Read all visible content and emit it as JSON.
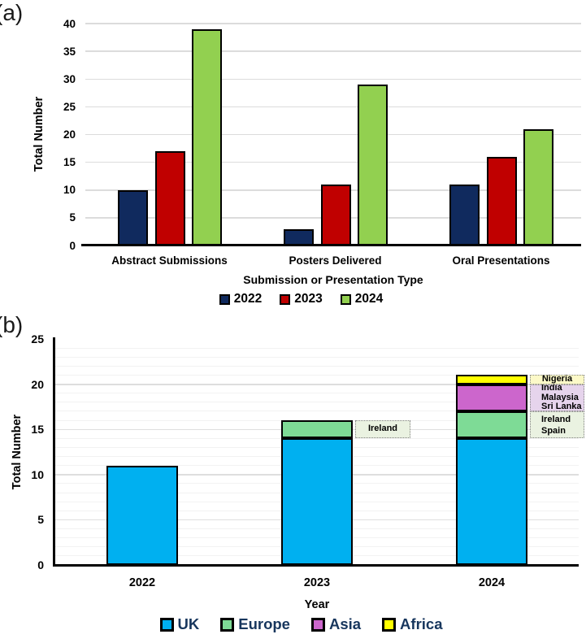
{
  "figure": {
    "panels": [
      {
        "panel_label": "(a)"
      },
      {
        "panel_label": "(b)"
      }
    ]
  },
  "chart_data": [
    {
      "type": "bar",
      "panel": "a",
      "title": "",
      "categories": [
        "Abstract Submissions",
        "Posters Delivered",
        "Oral Presentations"
      ],
      "series": [
        {
          "name": "2022",
          "color": "#102A5E",
          "values": [
            10,
            3,
            11
          ]
        },
        {
          "name": "2023",
          "color": "#C00000",
          "values": [
            17,
            11,
            16
          ]
        },
        {
          "name": "2024",
          "color": "#92D050",
          "values": [
            39,
            29,
            21
          ]
        }
      ],
      "xlabel": "Submission or Presentation Type",
      "ylabel": "Total Number",
      "ylim": [
        0,
        40
      ],
      "ytick_step": 5,
      "grid": "horizontal-major",
      "gridline_color": "#DCDCDC",
      "bar_border_color": "#000000",
      "legend_position": "bottom",
      "legend_text_color": "#000000"
    },
    {
      "type": "stacked_bar",
      "panel": "b",
      "title": "",
      "categories": [
        "2022",
        "2023",
        "2024"
      ],
      "series": [
        {
          "name": "UK",
          "color": "#00B0F0",
          "values": [
            11,
            14,
            14
          ]
        },
        {
          "name": "Europe",
          "color": "#7EDB96",
          "values": [
            0,
            2,
            3
          ]
        },
        {
          "name": "Asia",
          "color": "#CC66CC",
          "values": [
            0,
            0,
            3
          ]
        },
        {
          "name": "Africa",
          "color": "#FFFF00",
          "values": [
            0,
            0,
            1
          ]
        }
      ],
      "totals": [
        11,
        16,
        21
      ],
      "xlabel": "Year",
      "ylabel": "Total Number",
      "ylim": [
        0,
        25
      ],
      "ytick_step": 5,
      "minor_grid_step": 1,
      "minor_gridline_color": "#F2F2F2",
      "major_gridline_color": "#DEDEDE",
      "bar_border_color": "#000000",
      "legend_position": "bottom",
      "legend_text_color": "#17365D",
      "annotations": [
        {
          "text_lines": [
            "Ireland"
          ],
          "category_index": 1,
          "value_span": [
            14,
            16
          ],
          "bg": "#EAF2E1",
          "align": "center"
        },
        {
          "text_lines": [
            "Ireland",
            "Spain"
          ],
          "category_index": 2,
          "value_span": [
            14,
            17
          ],
          "bg": "#EAF2E1",
          "align": "left"
        },
        {
          "text_lines": [
            "India",
            "Malaysia",
            "Sri Lanka"
          ],
          "category_index": 2,
          "value_span": [
            17,
            20
          ],
          "bg": "#E6D4EC",
          "align": "left"
        },
        {
          "text_lines": [
            "Nigeria"
          ],
          "category_index": 2,
          "value_span": [
            20,
            21
          ],
          "bg": "#FCF9C8",
          "align": "center"
        }
      ]
    }
  ]
}
